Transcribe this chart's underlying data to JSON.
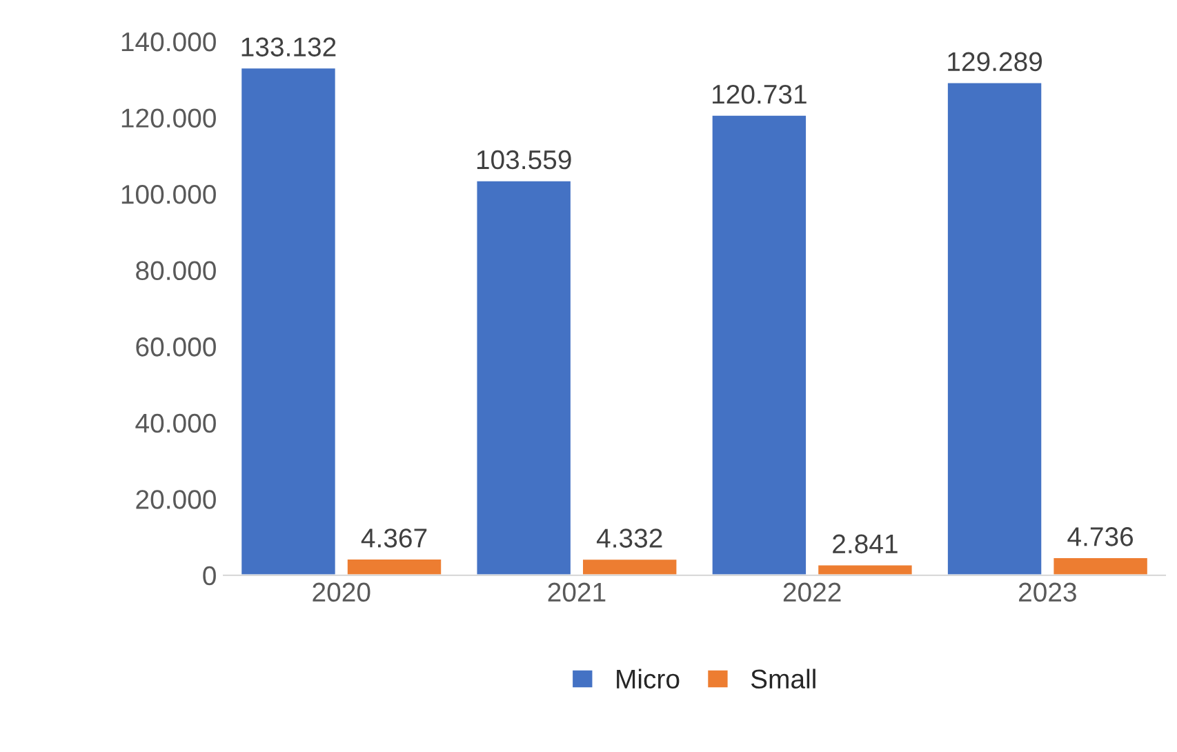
{
  "chart_data": {
    "type": "bar",
    "categories": [
      "2020",
      "2021",
      "2022",
      "2023"
    ],
    "series": [
      {
        "name": "Micro",
        "color": "#4472c4",
        "values": [
          133132,
          103559,
          120731,
          129289
        ],
        "value_labels": [
          "133.132",
          "103.559",
          "120.731",
          "129.289"
        ]
      },
      {
        "name": "Small",
        "color": "#ed7d31",
        "values": [
          4367,
          4332,
          2841,
          4736
        ],
        "value_labels": [
          "4.367",
          "4.332",
          "2.841",
          "4.736"
        ]
      }
    ],
    "ylim": [
      0,
      140000
    ],
    "yticks": [
      {
        "value": 0,
        "label": "0"
      },
      {
        "value": 20000,
        "label": "20.000"
      },
      {
        "value": 40000,
        "label": "40.000"
      },
      {
        "value": 60000,
        "label": "60.000"
      },
      {
        "value": 80000,
        "label": "80.000"
      },
      {
        "value": 100000,
        "label": "100.000"
      },
      {
        "value": 120000,
        "label": "120.000"
      },
      {
        "value": 140000,
        "label": "140.000"
      }
    ],
    "legend": "bottom",
    "grid": false
  }
}
